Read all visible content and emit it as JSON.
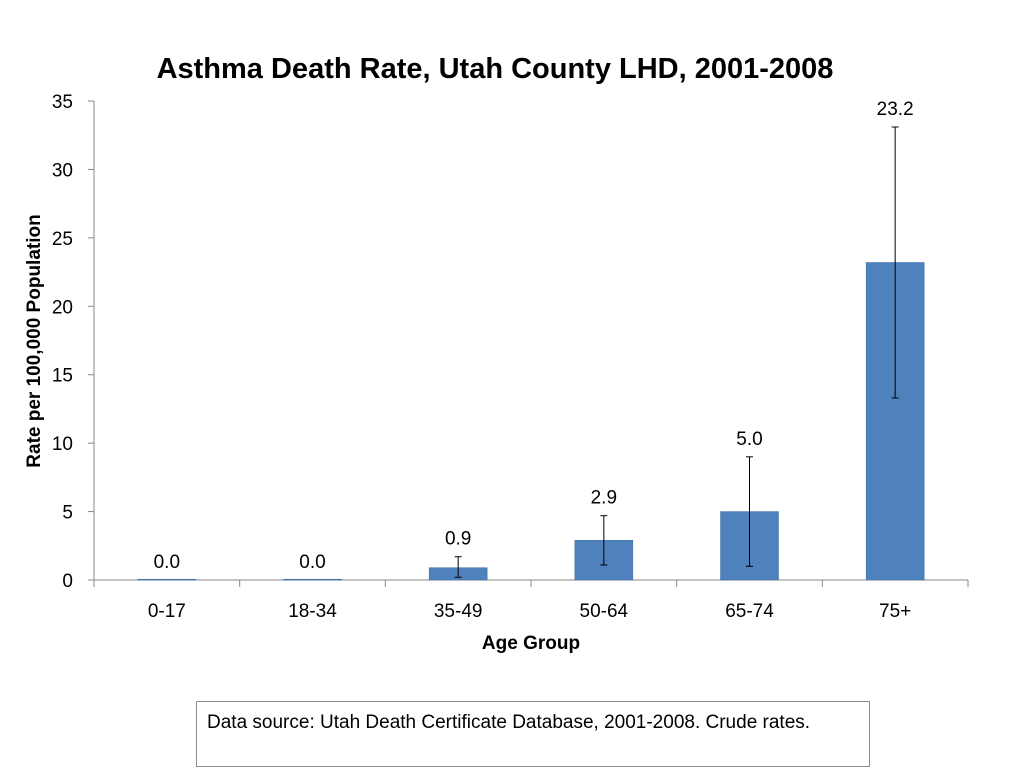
{
  "colors": {
    "bar": "#4f81bd",
    "bar_edge": "#3c6aa3",
    "axis": "#888888",
    "text": "#000000"
  },
  "chart_data": {
    "type": "bar",
    "title": "Asthma Death Rate, Utah County LHD, 2001-2008",
    "xlabel": "Age Group",
    "ylabel": "Rate per 100,000 Population",
    "categories": [
      "0-17",
      "18-34",
      "35-49",
      "50-64",
      "65-74",
      "75+"
    ],
    "values": [
      0.0,
      0.0,
      0.9,
      2.9,
      5.0,
      23.2
    ],
    "data_labels": [
      "0.0",
      "0.0",
      "0.9",
      "2.9",
      "5.0",
      "23.2"
    ],
    "error_low": [
      0.0,
      0.0,
      0.2,
      1.1,
      1.0,
      13.3
    ],
    "error_high": [
      0.0,
      0.0,
      1.7,
      4.7,
      9.0,
      33.1
    ],
    "ylim": [
      0,
      35
    ],
    "yticks": [
      0,
      5,
      10,
      15,
      20,
      25,
      30,
      35
    ],
    "grid": false,
    "legend": "none"
  },
  "footnote": {
    "text": "Data source: Utah Death Certificate Database, 2001-2008. Crude rates."
  }
}
